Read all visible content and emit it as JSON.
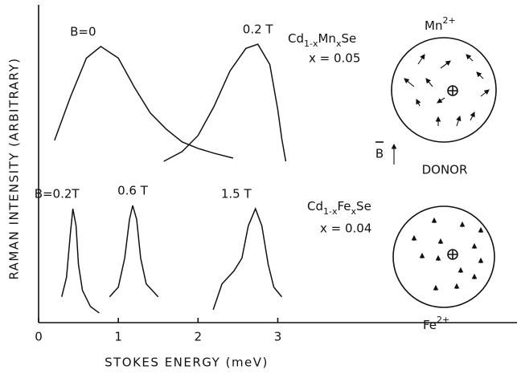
{
  "chart_data": {
    "type": "line",
    "xlabel": "STOKES ENERGY (meV)",
    "ylabel": "RAMAN INTENSITY (ARBITRARY)",
    "xlim": [
      0,
      6
    ],
    "ylim": [
      0,
      100
    ],
    "xticks": [
      0,
      1,
      2,
      3
    ],
    "series": [
      {
        "name": "B=0",
        "color": "#111111",
        "x": [
          0.2,
          0.4,
          0.6,
          0.78,
          1.0,
          1.2,
          1.4,
          1.6,
          1.8,
          2.0,
          2.2,
          2.44
        ],
        "values": [
          56.5,
          70,
          82,
          85.6,
          82,
          73,
          65,
          60,
          56,
          54,
          52.5,
          51
        ]
      },
      {
        "name": "0.2 T",
        "color": "#111111",
        "x": [
          1.57,
          1.8,
          2.0,
          2.2,
          2.4,
          2.6,
          2.75,
          2.9,
          3.0,
          3.05,
          3.1
        ],
        "values": [
          50,
          53,
          58,
          67,
          78,
          85,
          86.3,
          80,
          66,
          57,
          50
        ]
      },
      {
        "name": "B=0.2T",
        "color": "#111111",
        "x": [
          0.29,
          0.35,
          0.4,
          0.43,
          0.47,
          0.5,
          0.55,
          0.65,
          0.76
        ],
        "values": [
          8,
          14,
          28,
          35.3,
          30,
          18,
          10,
          5,
          3
        ]
      },
      {
        "name": "0.6 T",
        "color": "#111111",
        "x": [
          0.89,
          1.0,
          1.08,
          1.14,
          1.18,
          1.23,
          1.28,
          1.35,
          1.5
        ],
        "values": [
          8,
          11,
          20,
          32,
          36.3,
          32,
          20,
          12,
          8
        ]
      },
      {
        "name": "1.5 T",
        "color": "#111111",
        "x": [
          2.19,
          2.3,
          2.45,
          2.55,
          2.63,
          2.72,
          2.8,
          2.88,
          2.95,
          3.05
        ],
        "values": [
          4,
          12,
          16,
          20,
          30,
          35.3,
          30,
          18,
          11,
          8
        ]
      }
    ],
    "annotations": {
      "mn_formula": [
        "Cd",
        "1-x",
        "Mn",
        "x",
        "Se"
      ],
      "mn_x": "x = 0.05",
      "fe_formula": [
        "Cd",
        "1-x",
        "Fe",
        "x",
        "Se"
      ],
      "fe_x": "x = 0.04",
      "mn_ion": [
        "Mn",
        "2+"
      ],
      "fe_ion": [
        "Fe",
        "2+"
      ],
      "field": "B",
      "donor": "DONOR"
    }
  }
}
